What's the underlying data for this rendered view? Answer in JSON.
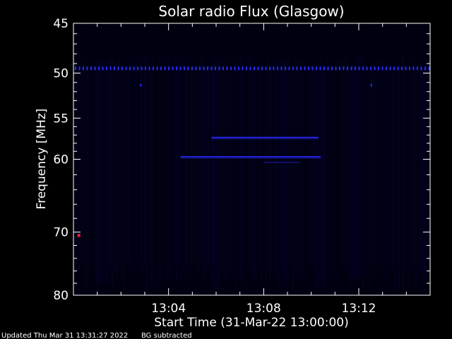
{
  "chart_data": {
    "type": "heatmap",
    "title": "Solar radio Flux (Glasgow)",
    "xlabel": "Start Time (31-Mar-22 13:00:00)",
    "ylabel": "Frequency [MHz]",
    "x_unit": "minutes after 13:00:00",
    "xlim": [
      0,
      15
    ],
    "ylim": [
      45,
      80
    ],
    "y_scale": "log",
    "y_inverted": true,
    "x_ticks": [
      {
        "value": 4,
        "label": "13:04"
      },
      {
        "value": 8,
        "label": "13:08"
      },
      {
        "value": 12,
        "label": "13:12"
      }
    ],
    "y_ticks": [
      {
        "value": 45,
        "label": "45"
      },
      {
        "value": 50,
        "label": "50"
      },
      {
        "value": 55,
        "label": "55"
      },
      {
        "value": 60,
        "label": "60"
      },
      {
        "value": 70,
        "label": "70"
      },
      {
        "value": 80,
        "label": "80"
      }
    ],
    "background_color": "#000010",
    "emission_color": "#2a2aff",
    "hot_pixel_color": "#ff2040",
    "features": [
      {
        "name": "interference band",
        "freq_mhz": 49.5,
        "t_start": 0,
        "t_end": 15,
        "intensity": "dotted"
      },
      {
        "name": "emission band",
        "freq_mhz": 57.3,
        "t_start": 5.8,
        "t_end": 10.3,
        "intensity": "moderate"
      },
      {
        "name": "emission band",
        "freq_mhz": 59.7,
        "t_start": 4.5,
        "t_end": 10.4,
        "intensity": "moderate"
      },
      {
        "name": "faint band",
        "freq_mhz": 60.4,
        "t_start": 8.0,
        "t_end": 9.5,
        "intensity": "faint"
      },
      {
        "name": "hot pixel",
        "freq_mhz": 70.5,
        "t_start": 0.2,
        "t_end": 0.3,
        "intensity": "bright"
      }
    ]
  },
  "footer": {
    "updated": "Updated Thu Mar 31 13:31:27 2022",
    "bg_note": "BG subtracted"
  }
}
